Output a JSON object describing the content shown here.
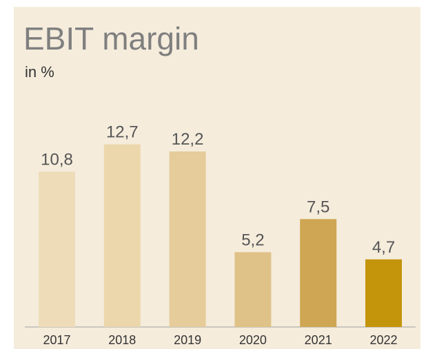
{
  "chart_data": {
    "type": "bar",
    "title": "EBIT margin",
    "subtitle": "in %",
    "categories": [
      "2017",
      "2018",
      "2019",
      "2020",
      "2021",
      "2022"
    ],
    "values": [
      10.8,
      12.7,
      12.2,
      5.2,
      7.5,
      4.7
    ],
    "value_labels": [
      "10,8",
      "12,7",
      "12,2",
      "5,2",
      "7,5",
      "4,7"
    ],
    "colors": [
      "#eedcb9",
      "#ecd7ac",
      "#e6cc9a",
      "#dfc287",
      "#cfa653",
      "#c4950b"
    ]
  }
}
